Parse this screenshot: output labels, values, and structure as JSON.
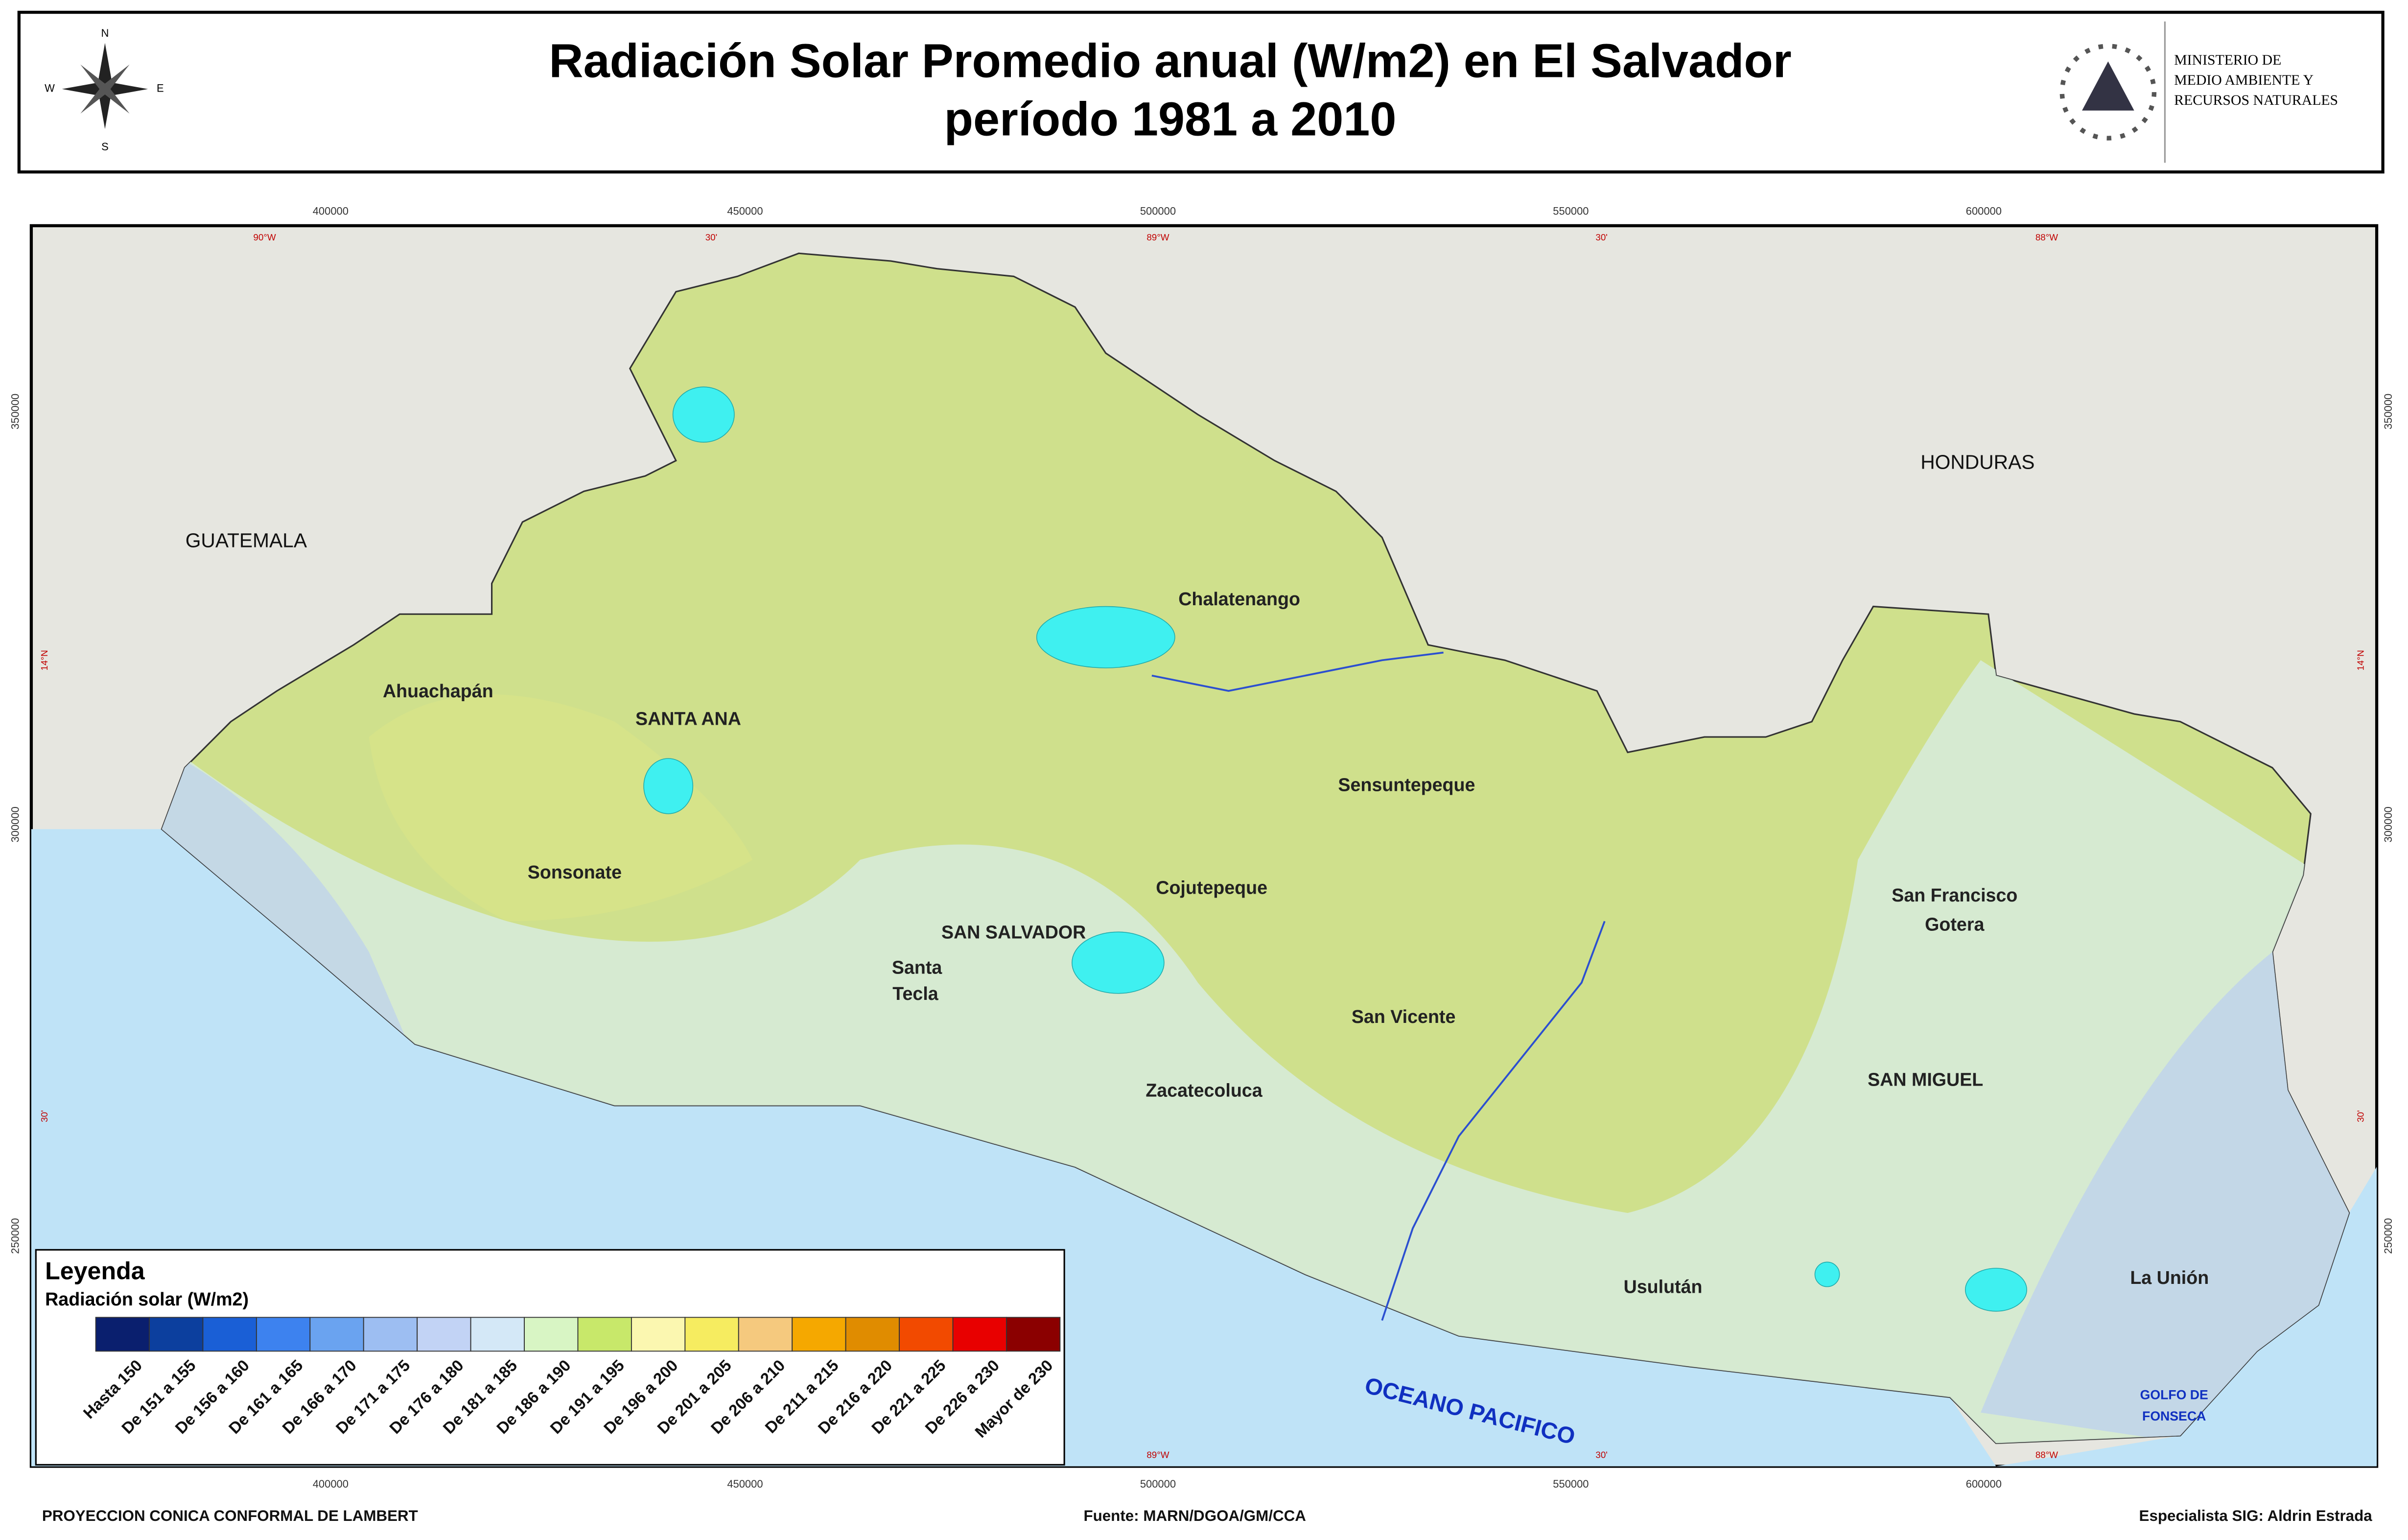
{
  "header": {
    "title_lines": [
      "Radiación Solar Promedio anual (W/m2) en El Salvador",
      "período 1981 a 2010"
    ],
    "compass": [
      "N",
      "S",
      "E",
      "W"
    ],
    "ministry": [
      "MINISTERIO DE",
      "MEDIO AMBIENTE Y",
      "RECURSOS NATURALES"
    ]
  },
  "grid": {
    "eastings": [
      "400000",
      "450000",
      "500000",
      "550000",
      "600000"
    ],
    "longitudes": [
      "90°W",
      "30'",
      "89°W",
      "30'",
      "88°W"
    ],
    "northings": [
      "350000",
      "300000",
      "250000"
    ],
    "latitudes": [
      "14°N",
      "30'"
    ]
  },
  "places": {
    "countries": [
      "GUATEMALA",
      "HONDURAS"
    ],
    "cities": [
      "Ahuachapán",
      "SANTA ANA",
      "Sonsonate",
      "Chalatenango",
      "Sensuntepeque",
      "Cojutepeque",
      "SAN SALVADOR",
      "Santa",
      "Tecla",
      "San Vicente",
      "Zacatecoluca",
      "San Francisco",
      "Gotera",
      "SAN MIGUEL",
      "Usulután",
      "La Unión"
    ],
    "ocean": "OCEANO PACIFICO",
    "gulf": [
      "GOLFO DE",
      "FONSECA"
    ]
  },
  "legend": {
    "title": "Leyenda",
    "subtitle": "Radiación solar (W/m2)",
    "classes": [
      {
        "label": "Hasta 150",
        "color": "#0a1f6e"
      },
      {
        "label": "De 151 a 155",
        "color": "#0c3f9e"
      },
      {
        "label": "De 156 a 160",
        "color": "#1a5fd6"
      },
      {
        "label": "De 161 a 165",
        "color": "#3d82ef"
      },
      {
        "label": "De 166 a 170",
        "color": "#6aa3f0"
      },
      {
        "label": "De 171 a 175",
        "color": "#9dbef2"
      },
      {
        "label": "De 176 a 180",
        "color": "#c2d3f5"
      },
      {
        "label": "De 181 a 185",
        "color": "#d4e8f7"
      },
      {
        "label": "De 186 a 190",
        "color": "#d8f5c4"
      },
      {
        "label": "De 191 a 195",
        "color": "#c8e86a"
      },
      {
        "label": "De 196 a 200",
        "color": "#fbf7b0"
      },
      {
        "label": "De 201 a 205",
        "color": "#f6ec60"
      },
      {
        "label": "De 206 a 210",
        "color": "#f5c97e"
      },
      {
        "label": "De 211 a 215",
        "color": "#f5a800"
      },
      {
        "label": "De 216 a 220",
        "color": "#e08c00"
      },
      {
        "label": "De 221 a 225",
        "color": "#f24a00"
      },
      {
        "label": "De 226 a 230",
        "color": "#e80000"
      },
      {
        "label": "Mayor de 230",
        "color": "#8b0000"
      }
    ]
  },
  "footer": {
    "projection": "PROYECCION CONICA CONFORMAL DE LAMBERT",
    "source": "Fuente: MARN/DGOA/GM/CCA",
    "author": "Especialista SIG: Aldrin Estrada"
  }
}
